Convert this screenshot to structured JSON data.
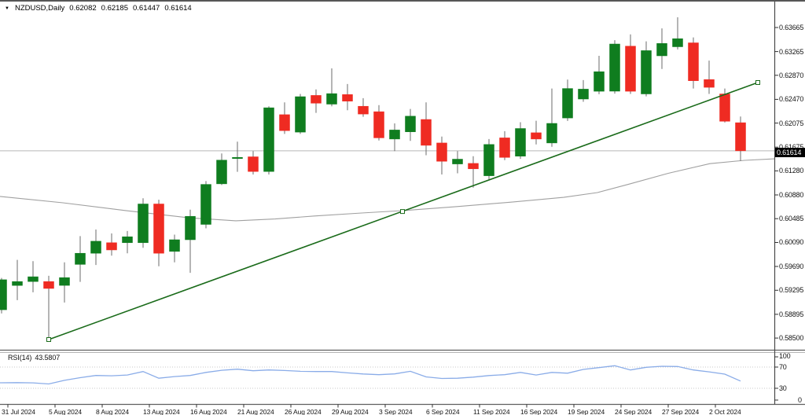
{
  "title": {
    "marker": "▼",
    "symbol": "NZDUSD,Daily",
    "open": "0.62082",
    "high": "0.62185",
    "low": "0.61447",
    "close": "0.61614"
  },
  "price_box": {
    "value": "0.61614"
  },
  "price_axis": {
    "labels": [
      "0.63665",
      "0.63265",
      "0.62870",
      "0.62470",
      "0.62075",
      "0.61675",
      "0.61280",
      "0.60880",
      "0.60485",
      "0.60090",
      "0.59690",
      "0.59295",
      "0.58895",
      "0.58500"
    ]
  },
  "date_axis": {
    "labels": [
      {
        "index": 0,
        "text": "31 Jul 2024"
      },
      {
        "index": 3,
        "text": "5 Aug 2024"
      },
      {
        "index": 6,
        "text": "8 Aug 2024"
      },
      {
        "index": 9,
        "text": "13 Aug 2024"
      },
      {
        "index": 12,
        "text": "16 Aug 2024"
      },
      {
        "index": 15,
        "text": "21 Aug 2024"
      },
      {
        "index": 18,
        "text": "26 Aug 2024"
      },
      {
        "index": 21,
        "text": "29 Aug 2024"
      },
      {
        "index": 24,
        "text": "3 Sep 2024"
      },
      {
        "index": 27,
        "text": "6 Sep 2024"
      },
      {
        "index": 30,
        "text": "11 Sep 2024"
      },
      {
        "index": 33,
        "text": "16 Sep 2024"
      },
      {
        "index": 36,
        "text": "19 Sep 2024"
      },
      {
        "index": 39,
        "text": "24 Sep 2024"
      },
      {
        "index": 42,
        "text": "27 Sep 2024"
      },
      {
        "index": 45,
        "text": "2 Oct 2024"
      }
    ]
  },
  "rsi_panel": {
    "name": "RSI(14)",
    "value": "43.5807",
    "scale_labels": [
      "100",
      "70",
      "30",
      "0"
    ]
  },
  "chart_data": {
    "type": "candlestick",
    "symbol": "NZDUSD",
    "timeframe": "Daily",
    "price_range": [
      0.585,
      0.63665
    ],
    "current_price": 0.61614,
    "candles": [
      {
        "date": "31 Jul 2024",
        "o": 0.5897,
        "h": 0.595,
        "l": 0.5891,
        "c": 0.5947
      },
      {
        "date": "1 Aug 2024",
        "o": 0.59375,
        "h": 0.598,
        "l": 0.5913,
        "c": 0.5944
      },
      {
        "date": "2 Aug 2024",
        "o": 0.5944,
        "h": 0.5978,
        "l": 0.5926,
        "c": 0.5952
      },
      {
        "date": "5 Aug 2024",
        "o": 0.5944,
        "h": 0.59535,
        "l": 0.58452,
        "c": 0.59325
      },
      {
        "date": "6 Aug 2024",
        "o": 0.59375,
        "h": 0.5976,
        "l": 0.5909,
        "c": 0.59505
      },
      {
        "date": "7 Aug 2024",
        "o": 0.59725,
        "h": 0.60195,
        "l": 0.59435,
        "c": 0.5991
      },
      {
        "date": "8 Aug 2024",
        "o": 0.5991,
        "h": 0.60305,
        "l": 0.59715,
        "c": 0.6011
      },
      {
        "date": "9 Aug 2024",
        "o": 0.60085,
        "h": 0.6024,
        "l": 0.5987,
        "c": 0.59965
      },
      {
        "date": "12 Aug 2024",
        "o": 0.60085,
        "h": 0.6028,
        "l": 0.5991,
        "c": 0.60185
      },
      {
        "date": "13 Aug 2024",
        "o": 0.60085,
        "h": 0.60825,
        "l": 0.6,
        "c": 0.6073
      },
      {
        "date": "14 Aug 2024",
        "o": 0.6073,
        "h": 0.608,
        "l": 0.59695,
        "c": 0.5991
      },
      {
        "date": "15 Aug 2024",
        "o": 0.5994,
        "h": 0.6022,
        "l": 0.5976,
        "c": 0.60135
      },
      {
        "date": "16 Aug 2024",
        "o": 0.60135,
        "h": 0.60635,
        "l": 0.59585,
        "c": 0.60525
      },
      {
        "date": "19 Aug 2024",
        "o": 0.6039,
        "h": 0.6111,
        "l": 0.60325,
        "c": 0.61055
      },
      {
        "date": "20 Aug 2024",
        "o": 0.61065,
        "h": 0.6157,
        "l": 0.61045,
        "c": 0.6146
      },
      {
        "date": "21 Aug 2024",
        "o": 0.6149,
        "h": 0.61765,
        "l": 0.61265,
        "c": 0.61505
      },
      {
        "date": "22 Aug 2024",
        "o": 0.61515,
        "h": 0.6161,
        "l": 0.6122,
        "c": 0.6127
      },
      {
        "date": "23 Aug 2024",
        "o": 0.6127,
        "h": 0.62355,
        "l": 0.6122,
        "c": 0.6233
      },
      {
        "date": "26 Aug 2024",
        "o": 0.62215,
        "h": 0.6242,
        "l": 0.61895,
        "c": 0.6195
      },
      {
        "date": "27 Aug 2024",
        "o": 0.61925,
        "h": 0.6256,
        "l": 0.61895,
        "c": 0.62515
      },
      {
        "date": "28 Aug 2024",
        "o": 0.62535,
        "h": 0.62635,
        "l": 0.62245,
        "c": 0.62405
      },
      {
        "date": "29 Aug 2024",
        "o": 0.6239,
        "h": 0.62985,
        "l": 0.62355,
        "c": 0.62565
      },
      {
        "date": "30 Aug 2024",
        "o": 0.6255,
        "h": 0.62725,
        "l": 0.6229,
        "c": 0.6244
      },
      {
        "date": "2 Sep 2024",
        "o": 0.62355,
        "h": 0.6249,
        "l": 0.6218,
        "c": 0.62225
      },
      {
        "date": "3 Sep 2024",
        "o": 0.62265,
        "h": 0.62375,
        "l": 0.61785,
        "c": 0.6183
      },
      {
        "date": "4 Sep 2024",
        "o": 0.6181,
        "h": 0.6207,
        "l": 0.6161,
        "c": 0.6196
      },
      {
        "date": "5 Sep 2024",
        "o": 0.6193,
        "h": 0.6231,
        "l": 0.6178,
        "c": 0.6219
      },
      {
        "date": "6 Sep 2024",
        "o": 0.62135,
        "h": 0.6242,
        "l": 0.6154,
        "c": 0.61705
      },
      {
        "date": "9 Sep 2024",
        "o": 0.61745,
        "h": 0.6185,
        "l": 0.6122,
        "c": 0.6144
      },
      {
        "date": "10 Sep 2024",
        "o": 0.61395,
        "h": 0.6161,
        "l": 0.6124,
        "c": 0.61475
      },
      {
        "date": "11 Sep 2024",
        "o": 0.61405,
        "h": 0.61525,
        "l": 0.61,
        "c": 0.61315
      },
      {
        "date": "12 Sep 2024",
        "o": 0.612,
        "h": 0.6181,
        "l": 0.6113,
        "c": 0.6172
      },
      {
        "date": "13 Sep 2024",
        "o": 0.6183,
        "h": 0.6194,
        "l": 0.6146,
        "c": 0.61505
      },
      {
        "date": "16 Sep 2024",
        "o": 0.61525,
        "h": 0.6209,
        "l": 0.6148,
        "c": 0.61985
      },
      {
        "date": "17 Sep 2024",
        "o": 0.61915,
        "h": 0.62115,
        "l": 0.6172,
        "c": 0.6181
      },
      {
        "date": "18 Sep 2024",
        "o": 0.61745,
        "h": 0.6265,
        "l": 0.6168,
        "c": 0.6207
      },
      {
        "date": "19 Sep 2024",
        "o": 0.6216,
        "h": 0.628,
        "l": 0.6211,
        "c": 0.6265
      },
      {
        "date": "20 Sep 2024",
        "o": 0.62475,
        "h": 0.6279,
        "l": 0.6243,
        "c": 0.6264
      },
      {
        "date": "23 Sep 2024",
        "o": 0.62605,
        "h": 0.63195,
        "l": 0.62555,
        "c": 0.6293
      },
      {
        "date": "24 Sep 2024",
        "o": 0.62605,
        "h": 0.63455,
        "l": 0.62565,
        "c": 0.6339
      },
      {
        "date": "25 Sep 2024",
        "o": 0.63355,
        "h": 0.6355,
        "l": 0.6256,
        "c": 0.62605
      },
      {
        "date": "26 Sep 2024",
        "o": 0.6256,
        "h": 0.63435,
        "l": 0.6252,
        "c": 0.6328
      },
      {
        "date": "27 Sep 2024",
        "o": 0.63195,
        "h": 0.6365,
        "l": 0.62975,
        "c": 0.634
      },
      {
        "date": "30 Sep 2024",
        "o": 0.63345,
        "h": 0.63835,
        "l": 0.633,
        "c": 0.6348
      },
      {
        "date": "1 Oct 2024",
        "o": 0.6341,
        "h": 0.635,
        "l": 0.6265,
        "c": 0.6278
      },
      {
        "date": "2 Oct 2024",
        "o": 0.628,
        "h": 0.63115,
        "l": 0.6256,
        "c": 0.6267
      },
      {
        "date": "3 Oct 2024",
        "o": 0.6256,
        "h": 0.6265,
        "l": 0.62085,
        "c": 0.62105
      },
      {
        "date": "4 Oct 2024",
        "o": 0.62082,
        "h": 0.62185,
        "l": 0.61447,
        "c": 0.61614
      }
    ],
    "trendline": {
      "points": [
        [
          62,
          0.58475
        ],
        [
          512,
          0.60605
        ],
        [
          964,
          0.6275
        ]
      ]
    },
    "ma_line": [
      [
        0,
        0.60855
      ],
      [
        80,
        0.6075
      ],
      [
        160,
        0.6062
      ],
      [
        240,
        0.605
      ],
      [
        300,
        0.6045
      ],
      [
        350,
        0.6048
      ],
      [
        400,
        0.6053
      ],
      [
        460,
        0.6058
      ],
      [
        513,
        0.6062
      ],
      [
        580,
        0.60685
      ],
      [
        650,
        0.6076
      ],
      [
        717,
        0.6084
      ],
      [
        760,
        0.6092
      ],
      [
        800,
        0.6106
      ],
      [
        850,
        0.6124
      ],
      [
        903,
        0.614
      ],
      [
        947,
        0.61455
      ],
      [
        985,
        0.6148
      ]
    ],
    "rsi": {
      "period": 14,
      "current": 43.5807,
      "levels": [
        70,
        30
      ],
      "values": [
        40.4,
        40.6,
        40.2,
        38.2,
        45.0,
        50.0,
        54.1,
        53.5,
        55.0,
        61.5,
        49.0,
        52.0,
        54.1,
        60.0,
        64.0,
        66.0,
        63.0,
        64.5,
        63.5,
        62.0,
        61.5,
        61.5,
        59.0,
        57.0,
        55.6,
        57.1,
        62.0,
        51.5,
        48.5,
        49.0,
        51.0,
        54.0,
        55.6,
        60.0,
        55.0,
        60.0,
        58.5,
        65.5,
        69.0,
        72.5,
        64.5,
        69.5,
        71.5,
        71.0,
        64.5,
        61.0,
        56.7,
        43.58
      ]
    }
  },
  "colors": {
    "background": "#ffffff",
    "bull": "#0f7d1f",
    "bear": "#ef2b22",
    "wick": "#6b6b6b",
    "trendline": "#1a6b1a",
    "ma": "#a0a0a0",
    "price_line": "#b6b6b6",
    "rsi_line": "#8aace8",
    "rsi_level": "#c8c8c8",
    "axis_line": "#4a4a4a",
    "separator": "#9a9a9a",
    "axis_text": "#141414",
    "box_bg": "#000000",
    "box_text": "#ffffff"
  }
}
